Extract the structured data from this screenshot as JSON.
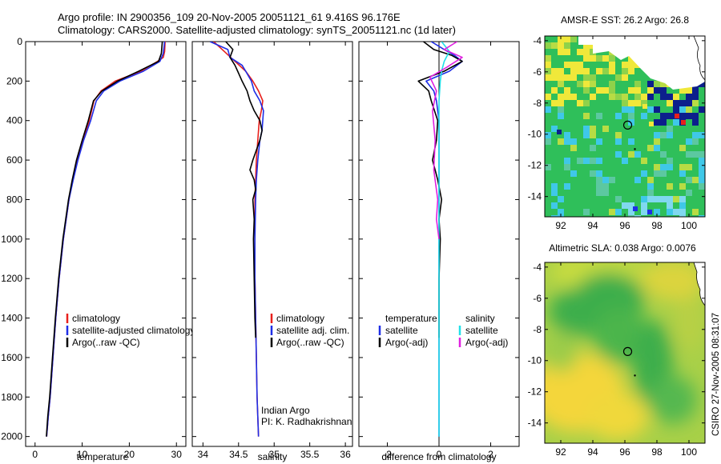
{
  "header": {
    "line1": "Argo profile: IN 2900356_109 20-Nov-2005 20051121_61 9.416S 96.176E",
    "line2": "Climatology: CARS2000. Satellite-adjusted climatology: synTS_20051121.nc (1d later)"
  },
  "side_label": "CSIRO 27-Nov-2005 08:31:07",
  "colors": {
    "climatology": "#e8201c",
    "satellite": "#1f2ee6",
    "argo": "#000000",
    "satellite_salinity": "#22e0e8",
    "argo_salinity_adj": "#e020e0",
    "sst_green": "#2fbf5a",
    "sst_yellow": "#f0e83a",
    "sst_cyan": "#3fc8e8",
    "sst_navy": "#0c1f8c",
    "sla_green": "#3cae4c",
    "sla_yellow": "#f4d63a"
  },
  "chart_data": [
    {
      "type": "line",
      "name": "temperature-profile",
      "xlabel": "temperature",
      "ylabel": "",
      "xlim": [
        -2,
        32
      ],
      "ylim": [
        2050,
        0
      ],
      "xticks": [
        0,
        10,
        20,
        30
      ],
      "yticks": [
        0,
        200,
        400,
        600,
        800,
        1000,
        1200,
        1400,
        1600,
        1800,
        2000
      ],
      "legend": [
        "climatology",
        "satellite-adjusted climatology",
        "Argo(..raw -QC)"
      ],
      "series": [
        {
          "name": "climatology",
          "color": "#e8201c",
          "x": [
            27.6,
            27.5,
            27.2,
            26.0,
            22.5,
            17.0,
            14.0,
            12.5,
            11.5,
            10.2,
            9.0,
            8.0,
            7.2,
            6.0,
            5.1,
            4.4,
            3.8,
            3.2,
            2.8,
            2.45
          ],
          "y": [
            0,
            50,
            80,
            100,
            150,
            200,
            250,
            300,
            400,
            500,
            600,
            700,
            800,
            1000,
            1200,
            1400,
            1600,
            1800,
            1900,
            2000
          ]
        },
        {
          "name": "satellite",
          "color": "#1f2ee6",
          "x": [
            27.5,
            27.2,
            26.5,
            23.0,
            18.0,
            14.6,
            13.0,
            11.8,
            10.3,
            9.1,
            8.1,
            7.2,
            6.0,
            5.1,
            4.4,
            3.8,
            3.2,
            2.8,
            2.45
          ],
          "y": [
            0,
            60,
            100,
            150,
            200,
            250,
            300,
            400,
            500,
            600,
            700,
            800,
            1000,
            1200,
            1400,
            1600,
            1800,
            1900,
            2000
          ]
        },
        {
          "name": "argo",
          "color": "#000000",
          "x": [
            27.0,
            26.8,
            26.2,
            22.0,
            17.5,
            14.2,
            12.4,
            11.3,
            10.0,
            8.8,
            7.9,
            7.1,
            5.9,
            5.0,
            4.3,
            3.7,
            3.1,
            2.7,
            2.4
          ],
          "y": [
            0,
            60,
            100,
            150,
            200,
            250,
            300,
            400,
            500,
            600,
            700,
            800,
            1000,
            1200,
            1400,
            1600,
            1800,
            1900,
            2000
          ]
        }
      ]
    },
    {
      "type": "line",
      "name": "salinity-profile",
      "xlabel": "salinity",
      "xlim": [
        33.85,
        36.1
      ],
      "ylim": [
        2050,
        0
      ],
      "xticks": [
        34,
        34.5,
        35,
        35.5,
        36
      ],
      "legend": [
        "climatology",
        "satellite adj. clim.",
        "Argo(..raw -QC)"
      ],
      "annotation": [
        "Indian Argo",
        "PI: K. Radhakrishnan"
      ],
      "series": [
        {
          "name": "climatology",
          "color": "#e8201c",
          "x": [
            34.15,
            34.3,
            34.45,
            34.6,
            34.7,
            34.78,
            34.84,
            34.82,
            34.79,
            34.77,
            34.75,
            34.74,
            34.73,
            34.73,
            34.73,
            34.74,
            34.75,
            34.76,
            34.77,
            34.78
          ],
          "y": [
            0,
            50,
            100,
            150,
            200,
            250,
            300,
            350,
            400,
            500,
            600,
            700,
            800,
            1000,
            1200,
            1400,
            1600,
            1800,
            1900,
            2000
          ]
        },
        {
          "name": "satellite",
          "color": "#1f2ee6",
          "x": [
            34.1,
            34.35,
            34.38,
            34.55,
            34.6,
            34.68,
            34.72,
            34.8,
            34.85,
            34.84,
            34.83,
            34.8,
            34.77,
            34.75,
            34.74,
            34.73,
            34.73,
            34.74,
            34.75,
            34.76,
            34.77,
            34.78
          ],
          "y": [
            0,
            40,
            80,
            120,
            150,
            200,
            250,
            300,
            350,
            400,
            450,
            500,
            600,
            700,
            800,
            1000,
            1200,
            1400,
            1600,
            1800,
            1900,
            2000
          ]
        },
        {
          "name": "argo",
          "color": "#000000",
          "x": [
            34.32,
            34.42,
            34.38,
            34.45,
            34.5,
            34.55,
            34.62,
            34.66,
            34.72,
            34.8,
            34.83,
            34.8,
            34.7,
            34.66,
            34.72,
            34.74,
            34.7,
            34.72,
            34.71,
            34.72,
            34.73,
            34.74
          ],
          "y": [
            0,
            40,
            80,
            120,
            160,
            200,
            250,
            300,
            350,
            400,
            450,
            500,
            600,
            650,
            700,
            750,
            800,
            900,
            1000,
            1200,
            1400,
            1500
          ]
        }
      ]
    },
    {
      "type": "line",
      "name": "difference-profile",
      "xlabel": "difference from climatology",
      "xlim": [
        -3.1,
        3.1
      ],
      "ylim": [
        2050,
        0
      ],
      "xticks": [
        -2,
        0,
        2
      ],
      "legend_temperature_title": "temperature",
      "legend_salinity_title": "salinity",
      "legend": [
        "satellite",
        "Argo(-adj)",
        "satellite",
        "Argo(-adj)"
      ],
      "series": [
        {
          "name": "temperature satellite",
          "color": "#1f2ee6",
          "x": [
            -0.3,
            0.2,
            0.6,
            0.9,
            0.4,
            -0.5,
            -0.2,
            -0.1,
            0.0,
            0.0,
            0.0,
            0.0,
            0.0,
            0.0,
            0.0,
            0.0,
            0.0
          ],
          "y": [
            0,
            40,
            70,
            100,
            150,
            200,
            250,
            300,
            400,
            500,
            600,
            800,
            1000,
            1200,
            1500,
            1800,
            2000
          ]
        },
        {
          "name": "temperature argo",
          "color": "#000000",
          "x": [
            -0.6,
            -0.2,
            0.5,
            0.9,
            0.2,
            -0.8,
            -0.4,
            -0.3,
            -0.05,
            -0.1,
            -0.25,
            -0.05,
            0.1,
            0.0,
            0.05,
            0.0,
            0.0
          ],
          "y": [
            0,
            40,
            70,
            100,
            150,
            200,
            250,
            300,
            400,
            500,
            600,
            700,
            800,
            900,
            1000,
            1200,
            1500
          ]
        },
        {
          "name": "salinity satellite",
          "color": "#22e0e8",
          "x": [
            0.1,
            0.4,
            0.2,
            0.1,
            0.05,
            0.0,
            0.0,
            0.0,
            0.0,
            0.0,
            0.0,
            0.0,
            0.0
          ],
          "y": [
            0,
            50,
            100,
            150,
            200,
            300,
            400,
            600,
            800,
            1000,
            1400,
            1800,
            2000
          ]
        },
        {
          "name": "salinity argo",
          "color": "#e020e0",
          "x": [
            0.7,
            0.2,
            0.9,
            0.3,
            -0.35,
            -0.1,
            -0.25,
            -0.15,
            -0.2,
            -0.05,
            -0.1,
            0.0
          ],
          "y": [
            0,
            40,
            80,
            130,
            180,
            250,
            350,
            500,
            650,
            800,
            900,
            1000
          ]
        }
      ]
    },
    {
      "type": "heatmap",
      "name": "amsre-sst-map",
      "title": "AMSR-E SST: 26.2 Argo: 26.8",
      "xlim": [
        91,
        101
      ],
      "ylim": [
        -15.3,
        -3.7
      ],
      "xticks": [
        92,
        94,
        96,
        98,
        100
      ],
      "yticks": [
        -4,
        -6,
        -8,
        -10,
        -12,
        -14
      ],
      "marker": {
        "lon": 96.176,
        "lat": -9.416
      }
    },
    {
      "type": "heatmap",
      "name": "altimetric-sla-map",
      "title": "Altimetric SLA: 0.038 Argo: 0.0076",
      "xlim": [
        91,
        101
      ],
      "ylim": [
        -15.3,
        -3.7
      ],
      "xticks": [
        92,
        94,
        96,
        98,
        100
      ],
      "yticks": [
        -4,
        -6,
        -8,
        -10,
        -12,
        -14
      ],
      "marker": {
        "lon": 96.176,
        "lat": -9.416
      }
    }
  ]
}
